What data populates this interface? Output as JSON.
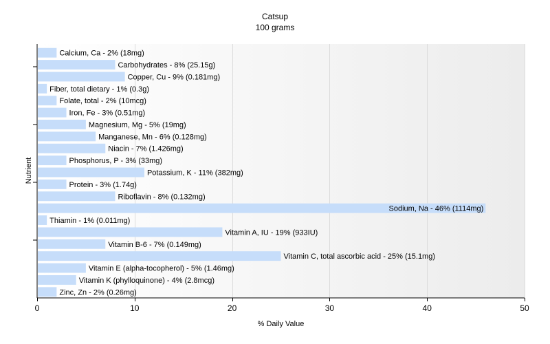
{
  "chart_data": {
    "type": "bar",
    "orientation": "horizontal",
    "title": "Catsup",
    "subtitle": "100 grams",
    "xlabel": "% Daily Value",
    "ylabel": "Nutrient",
    "xlim": [
      0,
      50
    ],
    "xticks": [
      0,
      10,
      20,
      30,
      40,
      50
    ],
    "grid": true,
    "bar_color": "#c6ddfa",
    "categories": [
      "Calcium, Ca",
      "Carbohydrates",
      "Copper, Cu",
      "Fiber, total dietary",
      "Folate, total",
      "Iron, Fe",
      "Magnesium, Mg",
      "Manganese, Mn",
      "Niacin",
      "Phosphorus, P",
      "Potassium, K",
      "Protein",
      "Riboflavin",
      "Sodium, Na",
      "Thiamin",
      "Vitamin A, IU",
      "Vitamin B-6",
      "Vitamin C, total ascorbic acid",
      "Vitamin E (alpha-tocopherol)",
      "Vitamin K (phylloquinone)",
      "Zinc, Zn"
    ],
    "values": [
      2,
      8,
      9,
      1,
      2,
      3,
      5,
      6,
      7,
      3,
      11,
      3,
      8,
      46,
      1,
      19,
      7,
      25,
      5,
      4,
      2
    ],
    "labels": [
      "Calcium, Ca - 2% (18mg)",
      "Carbohydrates - 8% (25.15g)",
      "Copper, Cu - 9% (0.181mg)",
      "Fiber, total dietary - 1% (0.3g)",
      "Folate, total - 2% (10mcg)",
      "Iron, Fe - 3% (0.51mg)",
      "Magnesium, Mg - 5% (19mg)",
      "Manganese, Mn - 6% (0.128mg)",
      "Niacin - 7% (1.426mg)",
      "Phosphorus, P - 3% (33mg)",
      "Potassium, K - 11% (382mg)",
      "Protein - 3% (1.74g)",
      "Riboflavin - 8% (0.132mg)",
      "Sodium, Na - 46% (1114mg)",
      "Thiamin - 1% (0.011mg)",
      "Vitamin A, IU - 19% (933IU)",
      "Vitamin B-6 - 7% (0.149mg)",
      "Vitamin C, total ascorbic acid - 25% (15.1mg)",
      "Vitamin E (alpha-tocopherol) - 5% (1.46mg)",
      "Vitamin K (phylloquinone) - 4% (2.8mcg)",
      "Zinc, Zn - 2% (0.26mg)"
    ]
  }
}
